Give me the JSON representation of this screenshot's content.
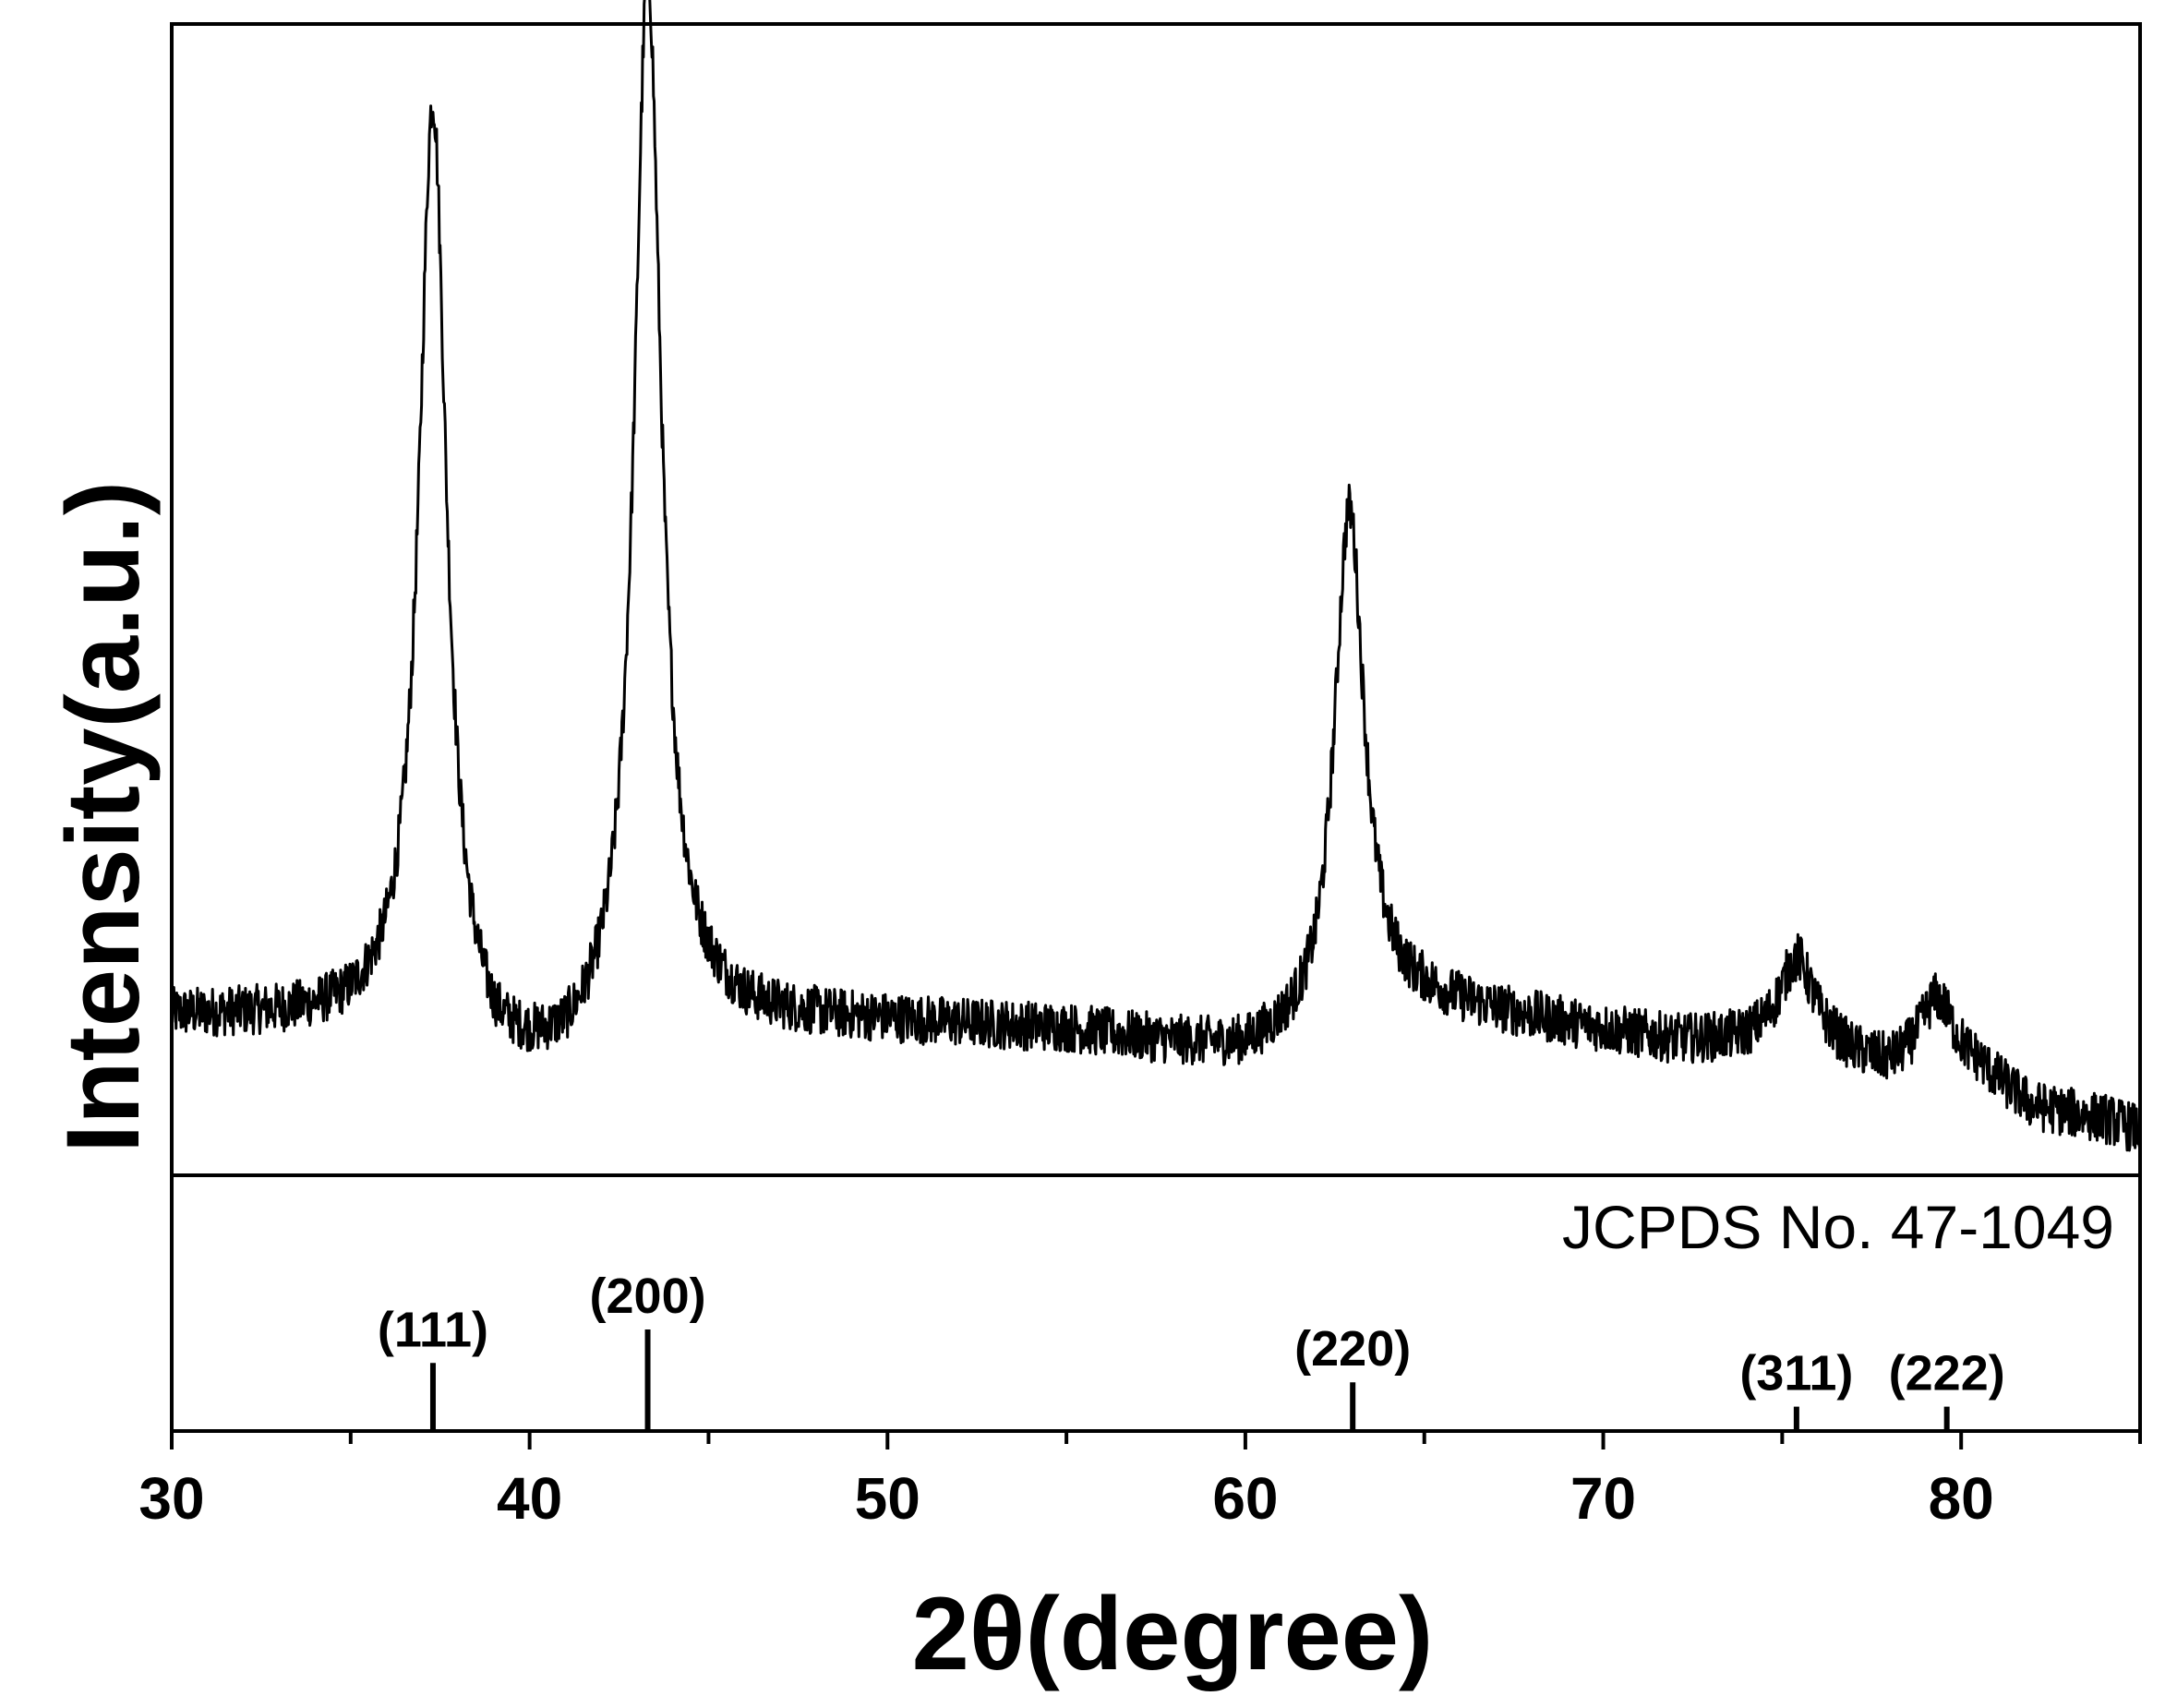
{
  "chart_data": {
    "type": "line",
    "xlabel": "2θ(degree)",
    "ylabel": "Intensity(a.u.)",
    "xlim": [
      30,
      85
    ],
    "x_ticks": [
      30,
      40,
      50,
      60,
      70,
      80
    ],
    "x_tick_labels": [
      "30",
      "40",
      "50",
      "60",
      "70",
      "80"
    ],
    "y_ticks_shown": false,
    "grid": false,
    "line_color": "#000000",
    "reference_title": "JCPDS No. 47-1049",
    "baseline": [
      [
        30,
        0.128
      ],
      [
        33,
        0.126
      ],
      [
        35,
        0.125
      ],
      [
        36,
        0.132
      ],
      [
        37,
        0.15
      ],
      [
        39,
        0.082
      ],
      [
        40,
        0.08
      ],
      [
        41,
        0.082
      ],
      [
        42,
        0.1
      ],
      [
        44,
        0.14
      ],
      [
        46,
        0.125
      ],
      [
        50,
        0.122
      ],
      [
        55,
        0.115
      ],
      [
        58,
        0.102
      ],
      [
        60,
        0.095
      ],
      [
        61,
        0.103
      ],
      [
        62,
        0.112
      ],
      [
        63,
        0.15
      ],
      [
        64,
        0.14
      ],
      [
        65,
        0.14
      ],
      [
        68,
        0.125
      ],
      [
        70,
        0.115
      ],
      [
        72,
        0.105
      ],
      [
        74,
        0.105
      ],
      [
        75.5,
        0.115
      ],
      [
        77,
        0.09
      ],
      [
        78,
        0.08
      ],
      [
        79.5,
        0.09
      ],
      [
        80.5,
        0.08
      ],
      [
        82,
        0.045
      ],
      [
        84,
        0.035
      ],
      [
        85,
        0.025
      ]
    ],
    "peaks": [
      {
        "x": 37.3,
        "height": 0.81,
        "width": 0.45
      },
      {
        "x": 43.3,
        "height": 0.94,
        "width": 0.45
      },
      {
        "x": 62.9,
        "height": 0.44,
        "width": 0.5
      },
      {
        "x": 75.4,
        "height": 0.065,
        "width": 0.55
      },
      {
        "x": 79.3,
        "height": 0.055,
        "width": 0.55
      }
    ],
    "noise_amplitude": 0.045,
    "reference_peaks": [
      {
        "x": 37.3,
        "label": "(111)",
        "intensity": 0.67
      },
      {
        "x": 43.3,
        "label": "(200)",
        "intensity": 1.0
      },
      {
        "x": 63.0,
        "label": "(220)",
        "intensity": 0.48
      },
      {
        "x": 75.4,
        "label": "(311)",
        "intensity": 0.24
      },
      {
        "x": 79.6,
        "label": "(222)",
        "intensity": 0.24
      }
    ]
  }
}
